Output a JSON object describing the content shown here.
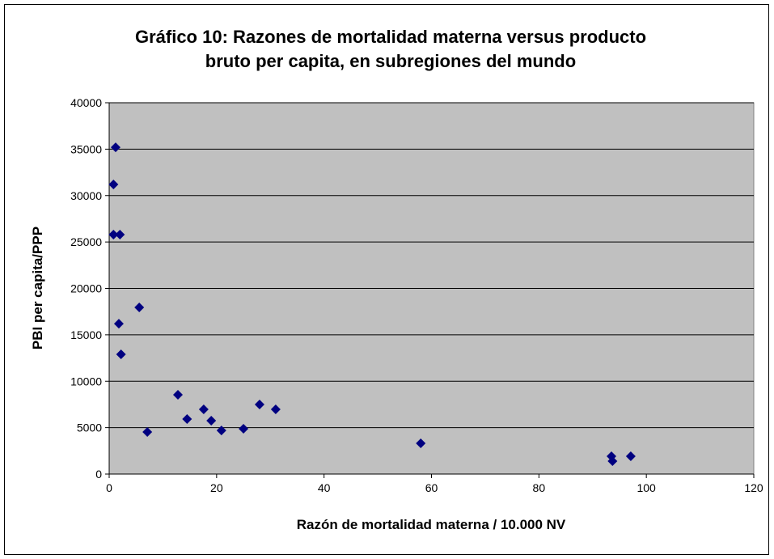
{
  "chart_data": {
    "type": "scatter",
    "title": "Gráfico 10: Razones de mortalidad materna versus producto bruto per capita, en subregiones del mundo",
    "title_lines": [
      "Gráfico 10: Razones de mortalidad materna versus producto",
      "bruto per capita, en subregiones del mundo"
    ],
    "xlabel": "Razón de mortalidad materna / 10.000 NV",
    "ylabel": "PBI per capita/PPP",
    "color": "#000080",
    "x": [
      1.2,
      0.8,
      0.8,
      2.0,
      5.6,
      1.8,
      2.2,
      7.1,
      12.8,
      14.5,
      17.6,
      19.0,
      20.9,
      25.0,
      28.0,
      31.0,
      58.0,
      93.5,
      93.7,
      97.1
    ],
    "y": [
      35200,
      31200,
      25800,
      25800,
      17950,
      16200,
      12900,
      4530,
      8540,
      5930,
      6970,
      5750,
      4700,
      4880,
      7490,
      6970,
      3310,
      1920,
      1390,
      1920
    ],
    "xlim": [
      0,
      120
    ],
    "xticks": [
      0,
      20,
      40,
      60,
      80,
      100,
      120
    ],
    "ylim": [
      0,
      40000
    ],
    "yticks": [
      0,
      5000,
      10000,
      15000,
      20000,
      25000,
      30000,
      35000,
      40000
    ],
    "grid": true
  }
}
